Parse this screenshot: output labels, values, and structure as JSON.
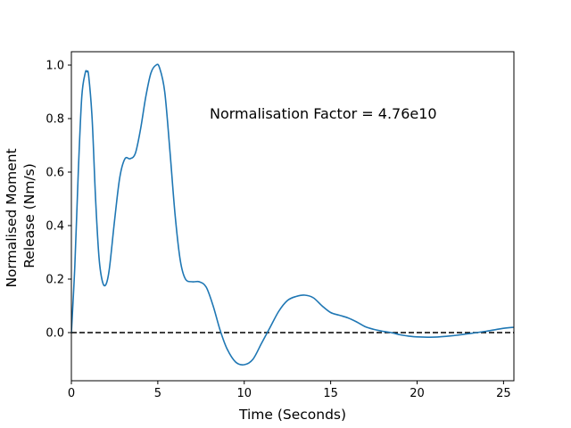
{
  "chart_data": {
    "type": "line",
    "title": "",
    "xlabel": "Time (Seconds)",
    "ylabel_lines": [
      "Normalised Moment",
      "Release (Nm/s)"
    ],
    "xlim": [
      0,
      25.6
    ],
    "ylim": [
      -0.18,
      1.05
    ],
    "xticks": [
      0,
      5,
      10,
      15,
      20,
      25
    ],
    "yticks": [
      0.0,
      0.2,
      0.4,
      0.6,
      0.8,
      1.0
    ],
    "ytick_labels": [
      "0.0",
      "0.2",
      "0.4",
      "0.6",
      "0.8",
      "1.0"
    ],
    "annotation": {
      "text": "Normalisation Factor = 4.76e10",
      "x": 8.0,
      "y": 0.82
    },
    "reference_line": {
      "y": 0.0,
      "style": "dashed",
      "color": "#000000"
    },
    "grid": false,
    "series": [
      {
        "color": "#1f77b4",
        "points": [
          [
            0.0,
            0.0
          ],
          [
            0.2,
            0.25
          ],
          [
            0.4,
            0.6
          ],
          [
            0.6,
            0.88
          ],
          [
            0.8,
            0.97
          ],
          [
            0.9,
            0.975
          ],
          [
            1.0,
            0.96
          ],
          [
            1.2,
            0.8
          ],
          [
            1.4,
            0.5
          ],
          [
            1.6,
            0.28
          ],
          [
            1.8,
            0.19
          ],
          [
            2.0,
            0.18
          ],
          [
            2.2,
            0.24
          ],
          [
            2.5,
            0.42
          ],
          [
            2.8,
            0.58
          ],
          [
            3.1,
            0.65
          ],
          [
            3.4,
            0.65
          ],
          [
            3.7,
            0.67
          ],
          [
            4.0,
            0.76
          ],
          [
            4.3,
            0.88
          ],
          [
            4.6,
            0.97
          ],
          [
            4.9,
            1.0
          ],
          [
            5.1,
            0.99
          ],
          [
            5.4,
            0.9
          ],
          [
            5.7,
            0.68
          ],
          [
            6.0,
            0.44
          ],
          [
            6.3,
            0.27
          ],
          [
            6.6,
            0.2
          ],
          [
            7.0,
            0.19
          ],
          [
            7.4,
            0.19
          ],
          [
            7.8,
            0.17
          ],
          [
            8.2,
            0.1
          ],
          [
            8.6,
            0.01
          ],
          [
            9.0,
            -0.06
          ],
          [
            9.5,
            -0.11
          ],
          [
            10.0,
            -0.12
          ],
          [
            10.5,
            -0.1
          ],
          [
            11.0,
            -0.04
          ],
          [
            11.5,
            0.02
          ],
          [
            12.0,
            0.08
          ],
          [
            12.5,
            0.12
          ],
          [
            13.0,
            0.135
          ],
          [
            13.5,
            0.14
          ],
          [
            14.0,
            0.13
          ],
          [
            14.5,
            0.1
          ],
          [
            15.0,
            0.075
          ],
          [
            15.5,
            0.065
          ],
          [
            16.0,
            0.055
          ],
          [
            16.5,
            0.04
          ],
          [
            17.0,
            0.022
          ],
          [
            17.5,
            0.012
          ],
          [
            18.0,
            0.005
          ],
          [
            18.5,
            0.0
          ],
          [
            19.0,
            -0.008
          ],
          [
            19.5,
            -0.013
          ],
          [
            20.0,
            -0.016
          ],
          [
            21.0,
            -0.017
          ],
          [
            22.0,
            -0.012
          ],
          [
            23.0,
            -0.004
          ],
          [
            24.0,
            0.005
          ],
          [
            25.0,
            0.016
          ],
          [
            25.6,
            0.02
          ]
        ]
      }
    ]
  }
}
